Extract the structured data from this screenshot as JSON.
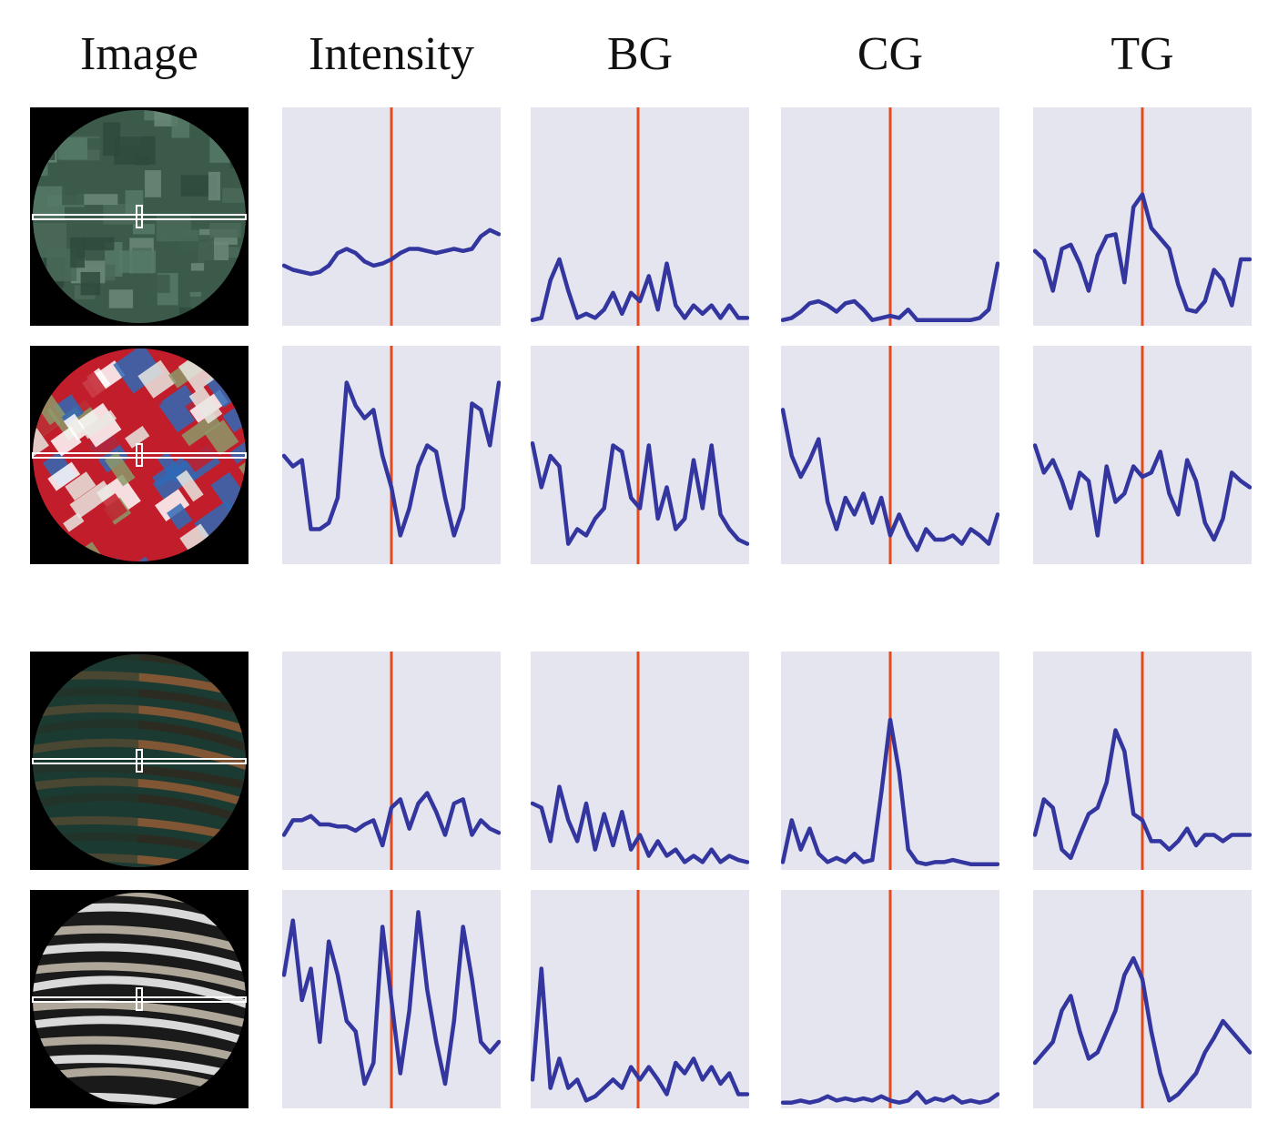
{
  "headers": [
    "Image",
    "Intensity",
    "BG",
    "CG",
    "TG"
  ],
  "colors": {
    "panel_bg": "#e4e5ef",
    "curve": "#3436a0",
    "marker": "#e54a1c",
    "image_bg": "#000000",
    "scanline": "#ffffff"
  },
  "rows": [
    {
      "image": {
        "description_icon": "green-foliage-patch",
        "palette": [
          "#3c5a4a",
          "#557a66",
          "#2e4a3c",
          "#6b8a78",
          "#4a6a58"
        ]
      },
      "intensity": [
        0.27,
        0.25,
        0.24,
        0.23,
        0.24,
        0.27,
        0.33,
        0.35,
        0.33,
        0.29,
        0.27,
        0.28,
        0.3,
        0.33,
        0.35,
        0.35,
        0.34,
        0.33,
        0.34,
        0.35,
        0.34,
        0.35,
        0.41,
        0.44,
        0.42
      ],
      "bg": [
        0.01,
        0.02,
        0.2,
        0.3,
        0.15,
        0.02,
        0.04,
        0.02,
        0.06,
        0.14,
        0.04,
        0.14,
        0.1,
        0.22,
        0.06,
        0.28,
        0.08,
        0.02,
        0.08,
        0.04,
        0.08,
        0.02,
        0.08,
        0.02,
        0.02
      ],
      "cg": [
        0.01,
        0.02,
        0.05,
        0.09,
        0.1,
        0.08,
        0.05,
        0.09,
        0.1,
        0.06,
        0.01,
        0.02,
        0.03,
        0.02,
        0.06,
        0.01,
        0.01,
        0.01,
        0.01,
        0.01,
        0.01,
        0.01,
        0.02,
        0.06,
        0.28
      ],
      "tg": [
        0.34,
        0.3,
        0.15,
        0.35,
        0.37,
        0.28,
        0.15,
        0.32,
        0.41,
        0.42,
        0.19,
        0.55,
        0.61,
        0.45,
        0.4,
        0.35,
        0.18,
        0.06,
        0.05,
        0.1,
        0.25,
        0.2,
        0.08,
        0.3,
        0.3
      ]
    },
    {
      "image": {
        "description_icon": "colorful-roof-tiles-patch",
        "palette": [
          "#c21d2a",
          "#2f6ab6",
          "#e9e8e2",
          "#8c9a6a",
          "#ffffff"
        ]
      },
      "intensity": [
        0.5,
        0.45,
        0.48,
        0.15,
        0.15,
        0.18,
        0.3,
        0.85,
        0.74,
        0.68,
        0.72,
        0.5,
        0.35,
        0.12,
        0.25,
        0.45,
        0.55,
        0.52,
        0.3,
        0.12,
        0.25,
        0.75,
        0.72,
        0.55,
        0.85
      ],
      "bg": [
        0.56,
        0.35,
        0.5,
        0.45,
        0.08,
        0.15,
        0.12,
        0.2,
        0.25,
        0.55,
        0.52,
        0.3,
        0.25,
        0.55,
        0.2,
        0.35,
        0.15,
        0.2,
        0.48,
        0.25,
        0.55,
        0.22,
        0.15,
        0.1,
        0.08
      ],
      "cg": [
        0.72,
        0.5,
        0.4,
        0.48,
        0.58,
        0.28,
        0.15,
        0.3,
        0.22,
        0.32,
        0.18,
        0.3,
        0.12,
        0.22,
        0.12,
        0.05,
        0.15,
        0.1,
        0.1,
        0.12,
        0.08,
        0.15,
        0.12,
        0.08,
        0.22
      ],
      "tg": [
        0.55,
        0.42,
        0.48,
        0.38,
        0.25,
        0.42,
        0.38,
        0.12,
        0.45,
        0.28,
        0.32,
        0.45,
        0.4,
        0.42,
        0.52,
        0.32,
        0.22,
        0.48,
        0.38,
        0.18,
        0.1,
        0.2,
        0.42,
        0.38,
        0.35
      ]
    },
    {
      "image": {
        "description_icon": "zebra-tiger-fur-patch",
        "palette": [
          "#1b3a32",
          "#8c5a34",
          "#b48655",
          "#2d2a20",
          "#c49a6c"
        ]
      },
      "intensity": [
        0.15,
        0.22,
        0.22,
        0.24,
        0.2,
        0.2,
        0.19,
        0.19,
        0.17,
        0.2,
        0.22,
        0.1,
        0.28,
        0.32,
        0.18,
        0.3,
        0.35,
        0.26,
        0.15,
        0.3,
        0.32,
        0.15,
        0.22,
        0.18,
        0.16
      ],
      "bg": [
        0.3,
        0.28,
        0.12,
        0.38,
        0.22,
        0.12,
        0.3,
        0.08,
        0.25,
        0.1,
        0.26,
        0.08,
        0.15,
        0.05,
        0.12,
        0.05,
        0.08,
        0.02,
        0.05,
        0.02,
        0.08,
        0.02,
        0.05,
        0.03,
        0.02
      ],
      "cg": [
        0.02,
        0.22,
        0.08,
        0.18,
        0.06,
        0.02,
        0.04,
        0.02,
        0.06,
        0.02,
        0.03,
        0.35,
        0.7,
        0.45,
        0.08,
        0.02,
        0.01,
        0.02,
        0.02,
        0.03,
        0.02,
        0.01,
        0.01,
        0.01,
        0.01
      ],
      "tg": [
        0.15,
        0.32,
        0.28,
        0.08,
        0.04,
        0.15,
        0.25,
        0.28,
        0.4,
        0.65,
        0.55,
        0.25,
        0.22,
        0.12,
        0.12,
        0.08,
        0.12,
        0.18,
        0.1,
        0.15,
        0.15,
        0.12,
        0.15,
        0.15,
        0.15
      ]
    },
    {
      "image": {
        "description_icon": "zebra-stripes-patch",
        "palette": [
          "#1a1a1a",
          "#eeeeee",
          "#7a7a6e",
          "#c0b8a8",
          "#3a3a34"
        ]
      },
      "intensity": [
        0.62,
        0.88,
        0.5,
        0.65,
        0.3,
        0.78,
        0.62,
        0.4,
        0.35,
        0.1,
        0.2,
        0.85,
        0.5,
        0.15,
        0.45,
        0.92,
        0.55,
        0.3,
        0.1,
        0.4,
        0.85,
        0.6,
        0.3,
        0.25,
        0.3
      ],
      "bg": [
        0.12,
        0.65,
        0.08,
        0.22,
        0.08,
        0.12,
        0.02,
        0.04,
        0.08,
        0.12,
        0.08,
        0.18,
        0.12,
        0.18,
        0.12,
        0.05,
        0.2,
        0.15,
        0.22,
        0.12,
        0.18,
        0.1,
        0.15,
        0.05,
        0.05
      ],
      "cg": [
        0.01,
        0.01,
        0.02,
        0.01,
        0.02,
        0.04,
        0.02,
        0.03,
        0.02,
        0.03,
        0.02,
        0.04,
        0.02,
        0.01,
        0.02,
        0.06,
        0.01,
        0.03,
        0.02,
        0.04,
        0.01,
        0.02,
        0.01,
        0.02,
        0.05
      ],
      "tg": [
        0.2,
        0.25,
        0.3,
        0.45,
        0.52,
        0.35,
        0.22,
        0.25,
        0.35,
        0.45,
        0.62,
        0.7,
        0.6,
        0.35,
        0.15,
        0.02,
        0.05,
        0.1,
        0.15,
        0.25,
        0.32,
        0.4,
        0.35,
        0.3,
        0.25
      ]
    }
  ]
}
